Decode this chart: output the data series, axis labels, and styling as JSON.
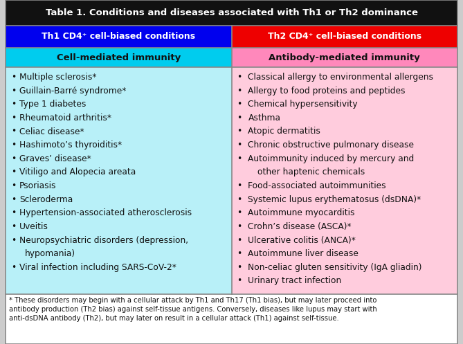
{
  "title": "Table 1. Conditions and diseases associated with Th1 or Th2 dominance",
  "title_bg": "#111111",
  "title_color": "#ffffff",
  "col1_header_bg": "#0000ee",
  "col2_header_bg": "#ee0000",
  "col1_header_text": "Th1 CD4⁺ cell-biased conditions",
  "col2_header_text": "Th2 CD4⁺ cell-biased conditions",
  "col1_subheader_text": "Cell-mediated immunity",
  "col2_subheader_text": "Antibody-mediated immunity",
  "col1_subheader_bg": "#00ccee",
  "col2_subheader_bg": "#ff88bb",
  "col1_body_bg": "#b8f0f8",
  "col2_body_bg": "#ffccdd",
  "col1_items": [
    "Multiple sclerosis*",
    "Guillain-Barré syndrome*",
    "Type 1 diabetes",
    "Rheumatoid arthritis*",
    "Celiac disease*",
    "Hashimoto’s thyroiditis*",
    "Graves’ disease*",
    "Vitiligo and Alopecia areata",
    "Psoriasis",
    "Scleroderma",
    "Hypertension-associated atherosclerosis",
    "Uveitis",
    "Neuropsychiatric disorders (depression,\nhypomania)",
    "Viral infection including SARS-CoV-2*"
  ],
  "col2_items": [
    "Classical allergy to environmental allergens",
    "Allergy to food proteins and peptides",
    "Chemical hypersensitivity",
    "Asthma",
    "Atopic dermatitis",
    "Chronic obstructive pulmonary disease",
    "Autoimmunity induced by mercury and\nother haptenic chemicals",
    "Food-associated autoimmunities",
    "Systemic lupus erythematosus (dsDNA)*",
    "Autoimmune myocarditis",
    "Crohn’s disease (ASCA)*",
    "Ulcerative colitis (ANCA)*",
    "Autoimmune liver disease",
    "Non-celiac gluten sensitivity (IgA gliadin)",
    "Urinary tract infection"
  ],
  "footer_text": "* These disorders may begin with a cellular attack by Th1 and Th17 (Th1 bias), but may later proceed into\nantibody production (Th2 bias) against self-tissue antigens. Conversely, diseases like lupus may start with\nanti-dsDNA antibody (Th2), but may later on result in a cellular attack (Th1) against self-tissue.",
  "footer_bg": "#ffffff",
  "border_color": "#888888",
  "text_color": "#111111",
  "header_text_color": "#ffffff",
  "subheader_text_color": "#111111",
  "fig_bg": "#cccccc",
  "title_fontsize": 9.5,
  "header_fontsize": 9.0,
  "subheader_fontsize": 9.5,
  "body_fontsize": 8.8,
  "footer_fontsize": 7.2
}
